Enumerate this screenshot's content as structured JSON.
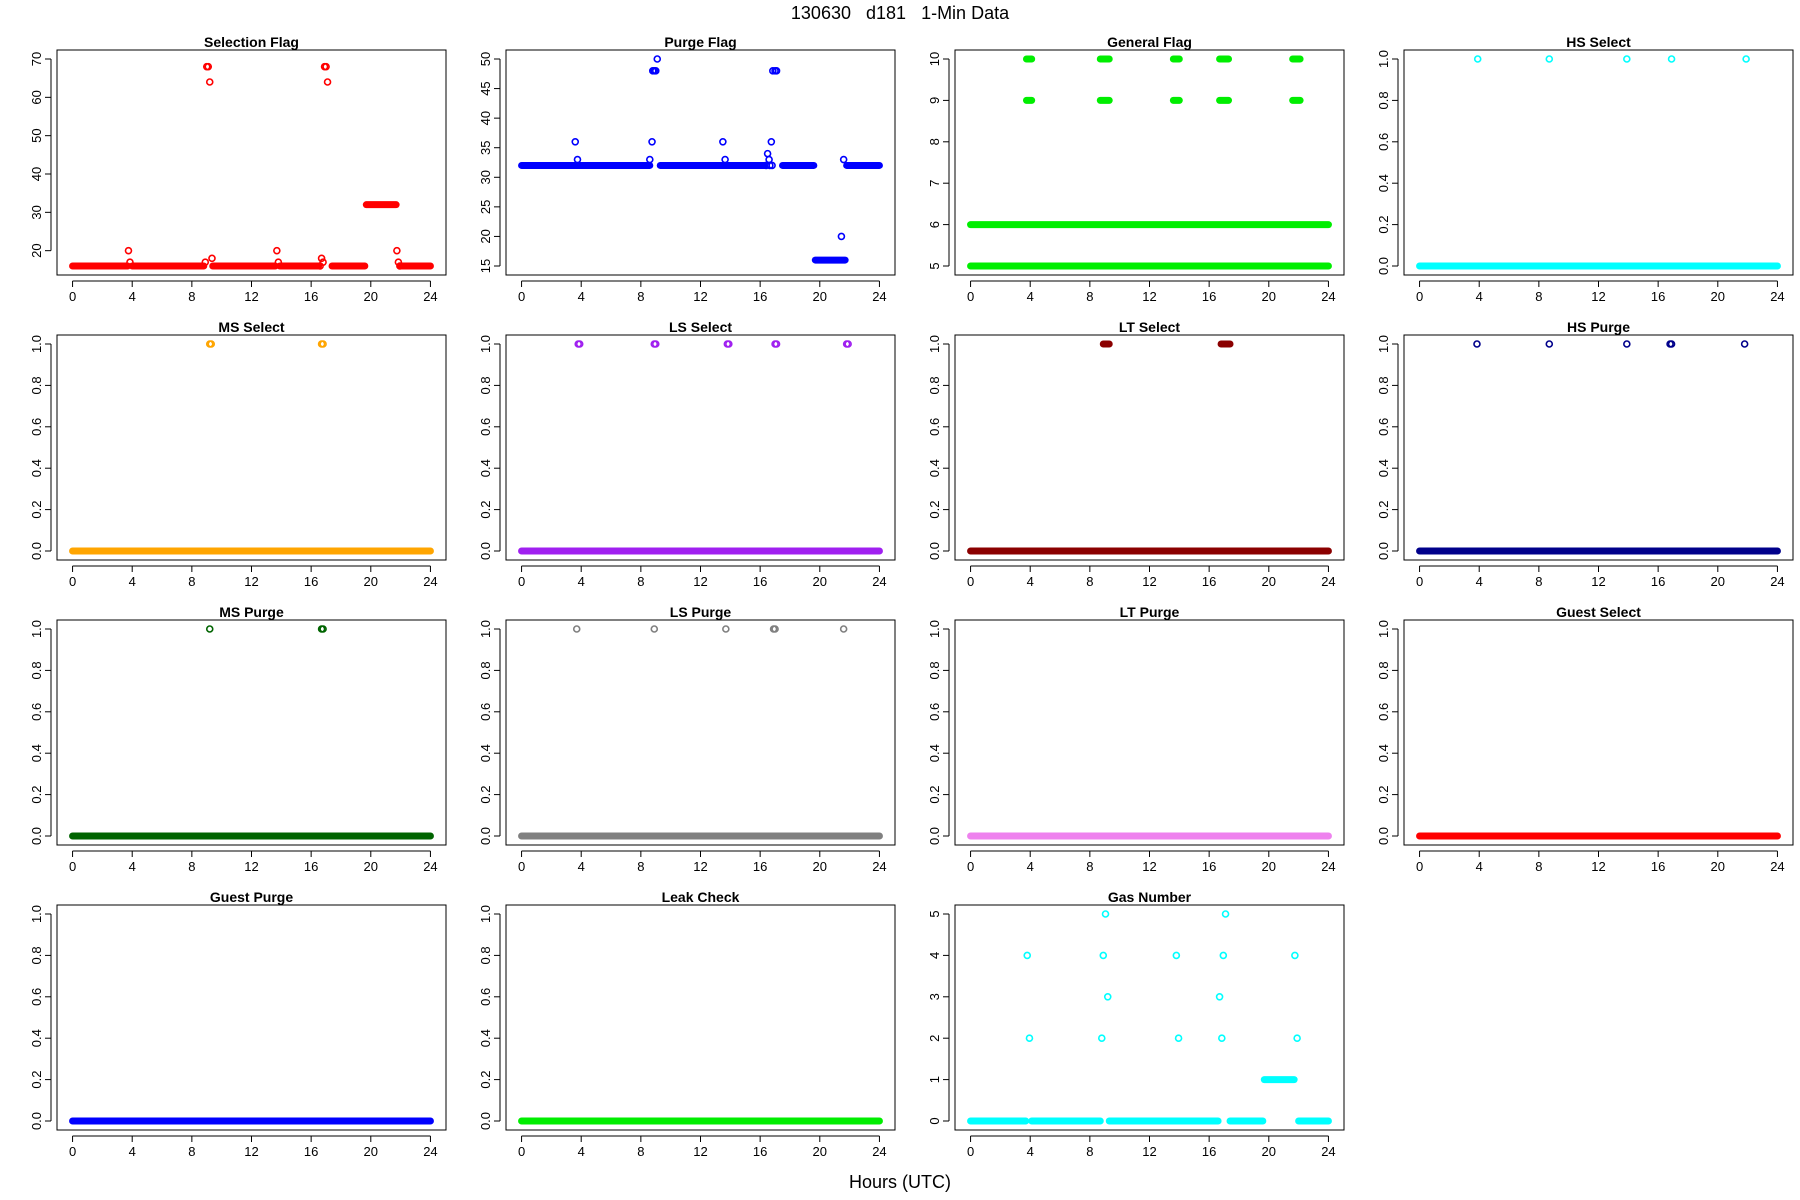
{
  "figure": {
    "title_parts": [
      "130630",
      "d181",
      "1-Min Data"
    ],
    "xlabel": "Hours (UTC)"
  },
  "chart_data": [
    {
      "type": "scatter",
      "title": "Selection Flag",
      "color": "#ff0000",
      "xlim": [
        0,
        24
      ],
      "ylim": [
        16,
        70
      ],
      "xticks": [
        0,
        4,
        8,
        12,
        16,
        20,
        24
      ],
      "yticks": [
        20,
        30,
        40,
        50,
        60,
        70
      ],
      "ytick_labels": [
        "20",
        "30",
        "40",
        "50",
        "60",
        "70"
      ],
      "segments": [
        [
          0,
          3.7,
          16
        ],
        [
          4.0,
          8.8,
          16
        ],
        [
          9.4,
          13.6,
          16
        ],
        [
          13.9,
          16.5,
          16
        ],
        [
          17.4,
          19.6,
          16
        ],
        [
          19.7,
          21.7,
          32
        ],
        [
          22.0,
          24,
          16
        ]
      ],
      "points": [
        [
          3.75,
          20
        ],
        [
          3.85,
          17
        ],
        [
          8.9,
          17
        ],
        [
          9.0,
          68
        ],
        [
          9.1,
          68
        ],
        [
          9.2,
          64
        ],
        [
          9.35,
          18
        ],
        [
          13.7,
          20
        ],
        [
          13.8,
          17
        ],
        [
          16.6,
          16
        ],
        [
          16.7,
          18
        ],
        [
          16.8,
          17
        ],
        [
          16.9,
          68
        ],
        [
          17.0,
          68
        ],
        [
          17.1,
          64
        ],
        [
          21.75,
          20
        ],
        [
          21.85,
          17
        ],
        [
          21.95,
          16
        ]
      ]
    },
    {
      "type": "scatter",
      "title": "Purge Flag",
      "color": "#0000ff",
      "xlim": [
        0,
        24
      ],
      "ylim": [
        15,
        50
      ],
      "xticks": [
        0,
        4,
        8,
        12,
        16,
        20,
        24
      ],
      "yticks": [
        15,
        20,
        25,
        30,
        35,
        40,
        45,
        50
      ],
      "ytick_labels": [
        "15",
        "20",
        "25",
        "30",
        "35",
        "40",
        "45",
        "50"
      ],
      "segments": [
        [
          0,
          8.6,
          32
        ],
        [
          9.3,
          16.3,
          32
        ],
        [
          17.5,
          19.6,
          32
        ],
        [
          19.7,
          21.7,
          16
        ],
        [
          21.8,
          24,
          32
        ]
      ],
      "points": [
        [
          3.6,
          36
        ],
        [
          3.75,
          33
        ],
        [
          8.6,
          33
        ],
        [
          8.75,
          36
        ],
        [
          8.8,
          48
        ],
        [
          8.9,
          48
        ],
        [
          9.0,
          48
        ],
        [
          9.1,
          50
        ],
        [
          13.5,
          36
        ],
        [
          13.65,
          33
        ],
        [
          16.4,
          32
        ],
        [
          16.5,
          34
        ],
        [
          16.6,
          33
        ],
        [
          16.65,
          32
        ],
        [
          16.75,
          36
        ],
        [
          16.8,
          32
        ],
        [
          16.85,
          48
        ],
        [
          17.0,
          48
        ],
        [
          17.1,
          48
        ],
        [
          21.45,
          20
        ],
        [
          21.6,
          33
        ]
      ]
    },
    {
      "type": "scatter",
      "title": "General Flag",
      "color": "#00ee00",
      "xlim": [
        0,
        24
      ],
      "ylim": [
        5,
        10
      ],
      "xticks": [
        0,
        4,
        8,
        12,
        16,
        20,
        24
      ],
      "yticks": [
        5,
        6,
        7,
        8,
        9,
        10
      ],
      "ytick_labels": [
        "5",
        "6",
        "7",
        "8",
        "9",
        "10"
      ],
      "segments": [
        [
          0,
          24,
          5
        ],
        [
          0,
          24,
          6
        ],
        [
          3.75,
          4.1,
          9
        ],
        [
          3.75,
          4.1,
          10
        ],
        [
          8.7,
          9.3,
          9
        ],
        [
          8.7,
          9.3,
          10
        ],
        [
          13.6,
          14.0,
          9
        ],
        [
          13.6,
          14.0,
          10
        ],
        [
          16.7,
          17.3,
          9
        ],
        [
          16.7,
          17.3,
          10
        ],
        [
          21.6,
          22.1,
          9
        ],
        [
          21.6,
          22.1,
          10
        ]
      ],
      "points": []
    },
    {
      "type": "scatter",
      "title": "HS Select",
      "color": "#00ffff",
      "xlim": [
        0,
        24
      ],
      "ylim": [
        0,
        1
      ],
      "xticks": [
        0,
        4,
        8,
        12,
        16,
        20,
        24
      ],
      "yticks": [
        0,
        0.2,
        0.4,
        0.6,
        0.8,
        1
      ],
      "ytick_labels": [
        "0.0",
        "0.2",
        "0.4",
        "0.6",
        "0.8",
        "1.0"
      ],
      "segments": [
        [
          0,
          24,
          0
        ]
      ],
      "points": [
        [
          3.9,
          1
        ],
        [
          8.7,
          1
        ],
        [
          13.9,
          1
        ],
        [
          16.9,
          1
        ],
        [
          21.9,
          1
        ]
      ]
    },
    {
      "type": "scatter",
      "title": "MS Select",
      "color": "#ffa500",
      "xlim": [
        0,
        24
      ],
      "ylim": [
        0,
        1
      ],
      "xticks": [
        0,
        4,
        8,
        12,
        16,
        20,
        24
      ],
      "yticks": [
        0,
        0.2,
        0.4,
        0.6,
        0.8,
        1
      ],
      "ytick_labels": [
        "0.0",
        "0.2",
        "0.4",
        "0.6",
        "0.8",
        "1.0"
      ],
      "segments": [
        [
          0,
          24,
          0
        ]
      ],
      "points": [
        [
          9.2,
          1
        ],
        [
          9.3,
          1
        ],
        [
          16.7,
          1
        ],
        [
          16.8,
          1
        ]
      ]
    },
    {
      "type": "scatter",
      "title": "LS Select",
      "color": "#a020f0",
      "xlim": [
        0,
        24
      ],
      "ylim": [
        0,
        1
      ],
      "xticks": [
        0,
        4,
        8,
        12,
        16,
        20,
        24
      ],
      "yticks": [
        0,
        0.2,
        0.4,
        0.6,
        0.8,
        1
      ],
      "ytick_labels": [
        "0.0",
        "0.2",
        "0.4",
        "0.6",
        "0.8",
        "1.0"
      ],
      "segments": [
        [
          0,
          24,
          0
        ]
      ],
      "points": [
        [
          3.8,
          1
        ],
        [
          3.9,
          1
        ],
        [
          8.9,
          1
        ],
        [
          9.0,
          1
        ],
        [
          13.8,
          1
        ],
        [
          13.9,
          1
        ],
        [
          17.0,
          1
        ],
        [
          17.1,
          1
        ],
        [
          21.8,
          1
        ],
        [
          21.9,
          1
        ]
      ]
    },
    {
      "type": "scatter",
      "title": "LT Select",
      "color": "#8b0000",
      "xlim": [
        0,
        24
      ],
      "ylim": [
        0,
        1
      ],
      "xticks": [
        0,
        4,
        8,
        12,
        16,
        20,
        24
      ],
      "yticks": [
        0,
        0.2,
        0.4,
        0.6,
        0.8,
        1
      ],
      "ytick_labels": [
        "0.0",
        "0.2",
        "0.4",
        "0.6",
        "0.8",
        "1.0"
      ],
      "segments": [
        [
          0,
          24,
          0
        ],
        [
          8.9,
          9.3,
          1
        ],
        [
          16.8,
          17.4,
          1
        ]
      ],
      "points": []
    },
    {
      "type": "scatter",
      "title": "HS Purge",
      "color": "#00008b",
      "xlim": [
        0,
        24
      ],
      "ylim": [
        0,
        1
      ],
      "xticks": [
        0,
        4,
        8,
        12,
        16,
        20,
        24
      ],
      "yticks": [
        0,
        0.2,
        0.4,
        0.6,
        0.8,
        1
      ],
      "ytick_labels": [
        "0.0",
        "0.2",
        "0.4",
        "0.6",
        "0.8",
        "1.0"
      ],
      "segments": [
        [
          0,
          24,
          0
        ]
      ],
      "points": [
        [
          3.85,
          1
        ],
        [
          8.7,
          1
        ],
        [
          13.9,
          1
        ],
        [
          16.8,
          1
        ],
        [
          16.9,
          1
        ],
        [
          21.8,
          1
        ]
      ]
    },
    {
      "type": "scatter",
      "title": "MS Purge",
      "color": "#006400",
      "xlim": [
        0,
        24
      ],
      "ylim": [
        0,
        1
      ],
      "xticks": [
        0,
        4,
        8,
        12,
        16,
        20,
        24
      ],
      "yticks": [
        0,
        0.2,
        0.4,
        0.6,
        0.8,
        1
      ],
      "ytick_labels": [
        "0.0",
        "0.2",
        "0.4",
        "0.6",
        "0.8",
        "1.0"
      ],
      "segments": [
        [
          0,
          24,
          0
        ]
      ],
      "points": [
        [
          9.2,
          1
        ],
        [
          16.7,
          1
        ],
        [
          16.8,
          1
        ]
      ]
    },
    {
      "type": "scatter",
      "title": "LS Purge",
      "color": "#808080",
      "xlim": [
        0,
        24
      ],
      "ylim": [
        0,
        1
      ],
      "xticks": [
        0,
        4,
        8,
        12,
        16,
        20,
        24
      ],
      "yticks": [
        0,
        0.2,
        0.4,
        0.6,
        0.8,
        1
      ],
      "ytick_labels": [
        "0.0",
        "0.2",
        "0.4",
        "0.6",
        "0.8",
        "1.0"
      ],
      "segments": [
        [
          0,
          24,
          0
        ]
      ],
      "points": [
        [
          3.7,
          1
        ],
        [
          8.9,
          1
        ],
        [
          13.7,
          1
        ],
        [
          16.9,
          1
        ],
        [
          17.0,
          1
        ],
        [
          21.6,
          1
        ]
      ]
    },
    {
      "type": "scatter",
      "title": "LT Purge",
      "color": "#ee82ee",
      "xlim": [
        0,
        24
      ],
      "ylim": [
        0,
        1
      ],
      "xticks": [
        0,
        4,
        8,
        12,
        16,
        20,
        24
      ],
      "yticks": [
        0,
        0.2,
        0.4,
        0.6,
        0.8,
        1
      ],
      "ytick_labels": [
        "0.0",
        "0.2",
        "0.4",
        "0.6",
        "0.8",
        "1.0"
      ],
      "segments": [
        [
          0,
          24,
          0
        ]
      ],
      "points": []
    },
    {
      "type": "scatter",
      "title": "Guest Select",
      "color": "#ff0000",
      "xlim": [
        0,
        24
      ],
      "ylim": [
        0,
        1
      ],
      "xticks": [
        0,
        4,
        8,
        12,
        16,
        20,
        24
      ],
      "yticks": [
        0,
        0.2,
        0.4,
        0.6,
        0.8,
        1
      ],
      "ytick_labels": [
        "0.0",
        "0.2",
        "0.4",
        "0.6",
        "0.8",
        "1.0"
      ],
      "segments": [
        [
          0,
          24,
          0
        ]
      ],
      "points": []
    },
    {
      "type": "scatter",
      "title": "Guest Purge",
      "color": "#0000ff",
      "xlim": [
        0,
        24
      ],
      "ylim": [
        0,
        1
      ],
      "xticks": [
        0,
        4,
        8,
        12,
        16,
        20,
        24
      ],
      "yticks": [
        0,
        0.2,
        0.4,
        0.6,
        0.8,
        1
      ],
      "ytick_labels": [
        "0.0",
        "0.2",
        "0.4",
        "0.6",
        "0.8",
        "1.0"
      ],
      "segments": [
        [
          0,
          24,
          0
        ]
      ],
      "points": []
    },
    {
      "type": "scatter",
      "title": "Leak Check",
      "color": "#00ee00",
      "xlim": [
        0,
        24
      ],
      "ylim": [
        0,
        1
      ],
      "xticks": [
        0,
        4,
        8,
        12,
        16,
        20,
        24
      ],
      "yticks": [
        0,
        0.2,
        0.4,
        0.6,
        0.8,
        1
      ],
      "ytick_labels": [
        "0.0",
        "0.2",
        "0.4",
        "0.6",
        "0.8",
        "1.0"
      ],
      "segments": [
        [
          0,
          24,
          0
        ]
      ],
      "points": []
    },
    {
      "type": "scatter",
      "title": "Gas Number",
      "color": "#00ffff",
      "xlim": [
        0,
        24
      ],
      "ylim": [
        0,
        5
      ],
      "xticks": [
        0,
        4,
        8,
        12,
        16,
        20,
        24
      ],
      "yticks": [
        0,
        1,
        2,
        3,
        4,
        5
      ],
      "ytick_labels": [
        "0",
        "1",
        "2",
        "3",
        "4",
        "5"
      ],
      "segments": [
        [
          0,
          3.7,
          0
        ],
        [
          4.1,
          8.7,
          0
        ],
        [
          9.3,
          16.6,
          0
        ],
        [
          17.4,
          19.6,
          0
        ],
        [
          19.7,
          21.7,
          1
        ],
        [
          22.0,
          24,
          0
        ]
      ],
      "points": [
        [
          3.8,
          4
        ],
        [
          3.95,
          2
        ],
        [
          8.8,
          2
        ],
        [
          8.9,
          4
        ],
        [
          9.05,
          5
        ],
        [
          9.2,
          3
        ],
        [
          13.8,
          4
        ],
        [
          13.95,
          2
        ],
        [
          16.7,
          3
        ],
        [
          16.85,
          2
        ],
        [
          16.95,
          4
        ],
        [
          17.1,
          5
        ],
        [
          21.75,
          4
        ],
        [
          21.9,
          2
        ]
      ]
    }
  ]
}
